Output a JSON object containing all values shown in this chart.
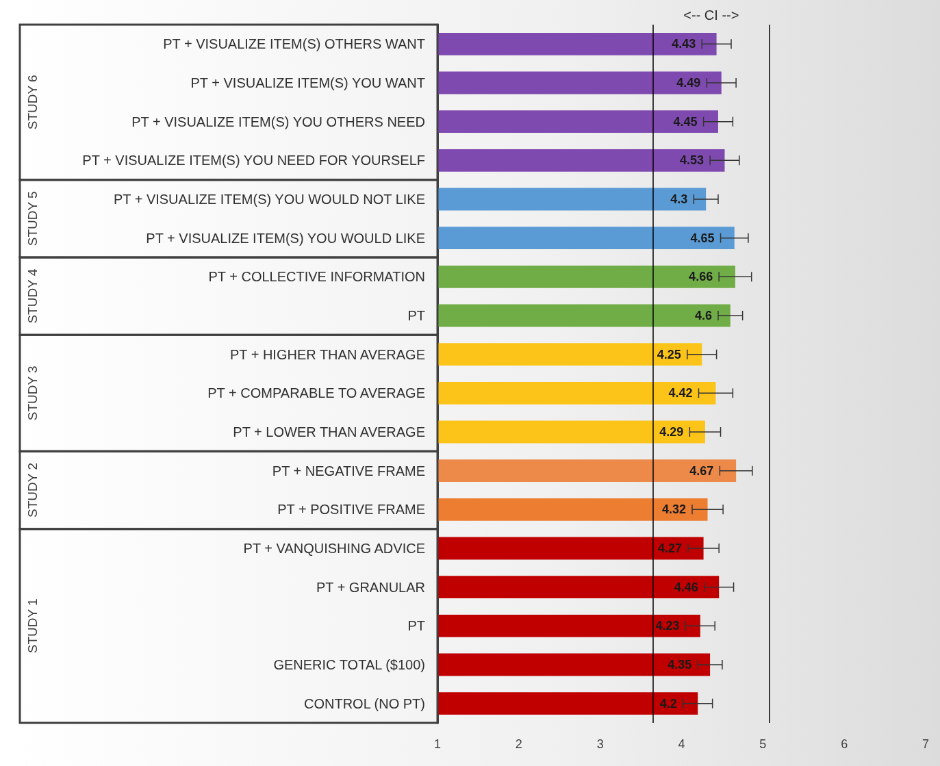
{
  "chart_data": {
    "type": "bar",
    "orientation": "horizontal",
    "categories": [
      "PT + VISUALIZE ITEM(S) OTHERS WANT",
      "PT + VISUALIZE ITEM(S) YOU WANT",
      "PT + VISUALIZE ITEM(S) YOU OTHERS NEED",
      "PT + VISUALIZE ITEM(S) YOU NEED FOR YOURSELF",
      "PT + VISUALIZE ITEM(S) YOU WOULD NOT LIKE",
      "PT + VISUALIZE ITEM(S) YOU WOULD LIKE",
      "PT + COLLECTIVE INFORMATION",
      "PT",
      "PT + HIGHER THAN AVERAGE",
      "PT + COMPARABLE TO AVERAGE",
      "PT + LOWER THAN AVERAGE",
      "PT + NEGATIVE FRAME",
      "PT + POSITIVE FRAME",
      "PT + VANQUISHING ADVICE",
      "PT + GRANULAR",
      "PT",
      "GENERIC TOTAL ($100)",
      "CONTROL (NO PT)"
    ],
    "values": [
      4.43,
      4.49,
      4.45,
      4.53,
      4.3,
      4.65,
      4.66,
      4.6,
      4.25,
      4.42,
      4.29,
      4.67,
      4.32,
      4.27,
      4.46,
      4.23,
      4.35,
      4.2
    ],
    "errors": [
      0.18,
      0.18,
      0.18,
      0.18,
      0.15,
      0.17,
      0.2,
      0.15,
      0.18,
      0.21,
      0.19,
      0.2,
      0.19,
      0.19,
      0.18,
      0.18,
      0.15,
      0.18
    ],
    "colors": [
      "#7f4ab0",
      "#7f4ab0",
      "#7f4ab0",
      "#7f4ab0",
      "#5b9bd5",
      "#5b9bd5",
      "#70ad47",
      "#70ad47",
      "#fcc419",
      "#fcc419",
      "#fcc419",
      "#ed8a4a",
      "#ed7d31",
      "#c00000",
      "#c00000",
      "#c00000",
      "#c00000",
      "#c00000"
    ],
    "data_labels": true,
    "xlim": [
      1,
      7
    ],
    "xticks": [
      1,
      2,
      3,
      4,
      5,
      6,
      7
    ],
    "grid": false,
    "ref_lines": [
      {
        "axis": "x",
        "value": 3.65,
        "label": null,
        "color": "#000000"
      },
      {
        "axis": "x",
        "value": 5.08,
        "label": null,
        "color": "#000000"
      }
    ],
    "annotations": [
      "<-- CI -->",
      "STUDY 6",
      "STUDY 5",
      "STUDY 4",
      "STUDY 3",
      "STUDY 2",
      "STUDY 1"
    ]
  }
}
